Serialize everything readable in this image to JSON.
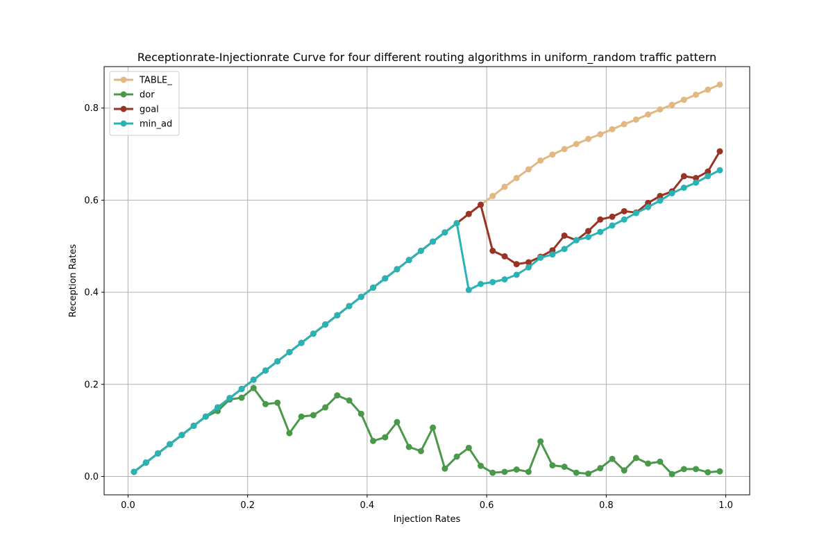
{
  "chart_data": {
    "type": "line",
    "title": "Receptionrate-Injectionrate Curve for four different routing algorithms in uniform_random traffic pattern",
    "xlabel": "Injection Rates",
    "ylabel": "Reception Rates",
    "xlim": [
      -0.04,
      1.04
    ],
    "ylim": [
      -0.04,
      0.89
    ],
    "xticks": [
      0.0,
      0.2,
      0.4,
      0.6,
      0.8,
      1.0
    ],
    "xtick_labels": [
      "0.0",
      "0.2",
      "0.4",
      "0.6",
      "0.8",
      "1.0"
    ],
    "yticks": [
      0.0,
      0.2,
      0.4,
      0.6,
      0.8
    ],
    "ytick_labels": [
      "0.0",
      "0.2",
      "0.4",
      "0.6",
      "0.8"
    ],
    "grid": true,
    "legend_position": "top-left",
    "x": [
      0.01,
      0.03,
      0.05,
      0.07,
      0.09,
      0.11,
      0.13,
      0.15,
      0.17,
      0.19,
      0.21,
      0.23,
      0.25,
      0.27,
      0.29,
      0.31,
      0.33,
      0.35,
      0.37,
      0.39,
      0.41,
      0.43,
      0.45,
      0.47,
      0.49,
      0.51,
      0.53,
      0.55,
      0.57,
      0.59,
      0.61,
      0.63,
      0.65,
      0.67,
      0.69,
      0.71,
      0.73,
      0.75,
      0.77,
      0.79,
      0.81,
      0.83,
      0.85,
      0.87,
      0.89,
      0.91,
      0.93,
      0.95,
      0.97,
      0.99
    ],
    "series": [
      {
        "name": "TABLE_",
        "color": "#e2b882",
        "values": [
          0.01,
          0.03,
          0.05,
          0.07,
          0.09,
          0.11,
          0.13,
          0.15,
          0.17,
          0.19,
          0.21,
          0.23,
          0.25,
          0.27,
          0.29,
          0.31,
          0.33,
          0.35,
          0.37,
          0.39,
          0.41,
          0.43,
          0.45,
          0.47,
          0.49,
          0.51,
          0.53,
          0.55,
          0.57,
          0.59,
          0.609,
          0.629,
          0.648,
          0.667,
          0.686,
          0.699,
          0.711,
          0.722,
          0.733,
          0.743,
          0.754,
          0.765,
          0.775,
          0.786,
          0.797,
          0.807,
          0.818,
          0.829,
          0.84,
          0.851
        ]
      },
      {
        "name": "dor",
        "color": "#4a984a",
        "values": [
          0.01,
          0.03,
          0.05,
          0.07,
          0.09,
          0.11,
          0.13,
          0.142,
          0.167,
          0.171,
          0.192,
          0.157,
          0.16,
          0.094,
          0.13,
          0.133,
          0.15,
          0.176,
          0.165,
          0.136,
          0.077,
          0.085,
          0.118,
          0.064,
          0.055,
          0.106,
          0.017,
          0.043,
          0.062,
          0.023,
          0.008,
          0.01,
          0.015,
          0.01,
          0.076,
          0.024,
          0.021,
          0.008,
          0.006,
          0.018,
          0.038,
          0.013,
          0.04,
          0.028,
          0.032,
          0.005,
          0.016,
          0.016,
          0.009,
          0.011
        ]
      },
      {
        "name": "goal",
        "color": "#993324",
        "values": [
          0.01,
          0.03,
          0.05,
          0.07,
          0.09,
          0.11,
          0.13,
          0.15,
          0.17,
          0.19,
          0.21,
          0.23,
          0.25,
          0.27,
          0.29,
          0.31,
          0.33,
          0.35,
          0.37,
          0.39,
          0.41,
          0.43,
          0.45,
          0.47,
          0.49,
          0.51,
          0.53,
          0.55,
          0.57,
          0.59,
          0.49,
          0.478,
          0.461,
          0.465,
          0.477,
          0.491,
          0.523,
          0.513,
          0.533,
          0.558,
          0.564,
          0.576,
          0.573,
          0.594,
          0.609,
          0.619,
          0.652,
          0.648,
          0.662,
          0.706
        ]
      },
      {
        "name": "min_ad",
        "color": "#2ab3b5",
        "values": [
          0.01,
          0.03,
          0.05,
          0.07,
          0.09,
          0.11,
          0.13,
          0.15,
          0.17,
          0.19,
          0.21,
          0.23,
          0.25,
          0.27,
          0.29,
          0.31,
          0.33,
          0.35,
          0.37,
          0.39,
          0.41,
          0.43,
          0.45,
          0.47,
          0.49,
          0.51,
          0.53,
          0.55,
          0.405,
          0.418,
          0.422,
          0.428,
          0.438,
          0.454,
          0.475,
          0.482,
          0.494,
          0.513,
          0.52,
          0.531,
          0.545,
          0.558,
          0.572,
          0.585,
          0.599,
          0.615,
          0.627,
          0.638,
          0.652,
          0.665
        ]
      }
    ]
  }
}
